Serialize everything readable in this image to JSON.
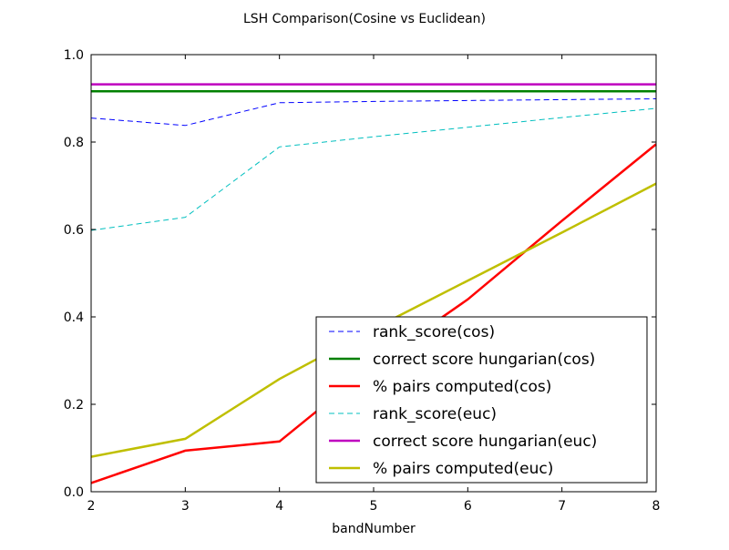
{
  "chart_data": {
    "type": "line",
    "title": "LSH Comparison(Cosine vs Euclidean)",
    "xlabel": "bandNumber",
    "ylabel": "",
    "xlim": [
      2,
      8
    ],
    "ylim": [
      0.0,
      1.0
    ],
    "xticks": [
      "2",
      "3",
      "4",
      "5",
      "6",
      "7",
      "8"
    ],
    "yticks": [
      "0.0",
      "0.2",
      "0.4",
      "0.6",
      "0.8",
      "1.0"
    ],
    "grid": false,
    "legend_position": "lower-right",
    "x": [
      2,
      3,
      4,
      5,
      6,
      7,
      8
    ],
    "series": [
      {
        "name": "rank_score(cos)",
        "color": "#0000ff",
        "style": "dashed",
        "width": 1,
        "values": [
          0.855,
          0.838,
          0.89,
          0.893,
          0.895,
          0.897,
          0.899
        ]
      },
      {
        "name": "correct score hungarian(cos)",
        "color": "#008000",
        "style": "solid",
        "width": 2.5,
        "values": [
          0.916,
          0.916,
          0.916,
          0.916,
          0.916,
          0.916,
          0.916
        ]
      },
      {
        "name": "% pairs computed(cos)",
        "color": "#ff0000",
        "style": "solid",
        "width": 2.5,
        "values": [
          0.02,
          0.094,
          0.115,
          0.29,
          0.44,
          0.62,
          0.795
        ]
      },
      {
        "name": "rank_score(euc)",
        "color": "#00bfbf",
        "style": "dashed",
        "width": 1,
        "values": [
          0.598,
          0.628,
          0.789,
          0.812,
          0.834,
          0.856,
          0.877
        ]
      },
      {
        "name": "correct score hungarian(euc)",
        "color": "#bf00bf",
        "style": "solid",
        "width": 2.5,
        "values": [
          0.932,
          0.932,
          0.932,
          0.932,
          0.932,
          0.932,
          0.932
        ]
      },
      {
        "name": "% pairs computed(euc)",
        "color": "#bfbf00",
        "style": "solid",
        "width": 2.5,
        "values": [
          0.08,
          0.121,
          0.258,
          0.373,
          0.483,
          0.593,
          0.705
        ]
      }
    ]
  }
}
